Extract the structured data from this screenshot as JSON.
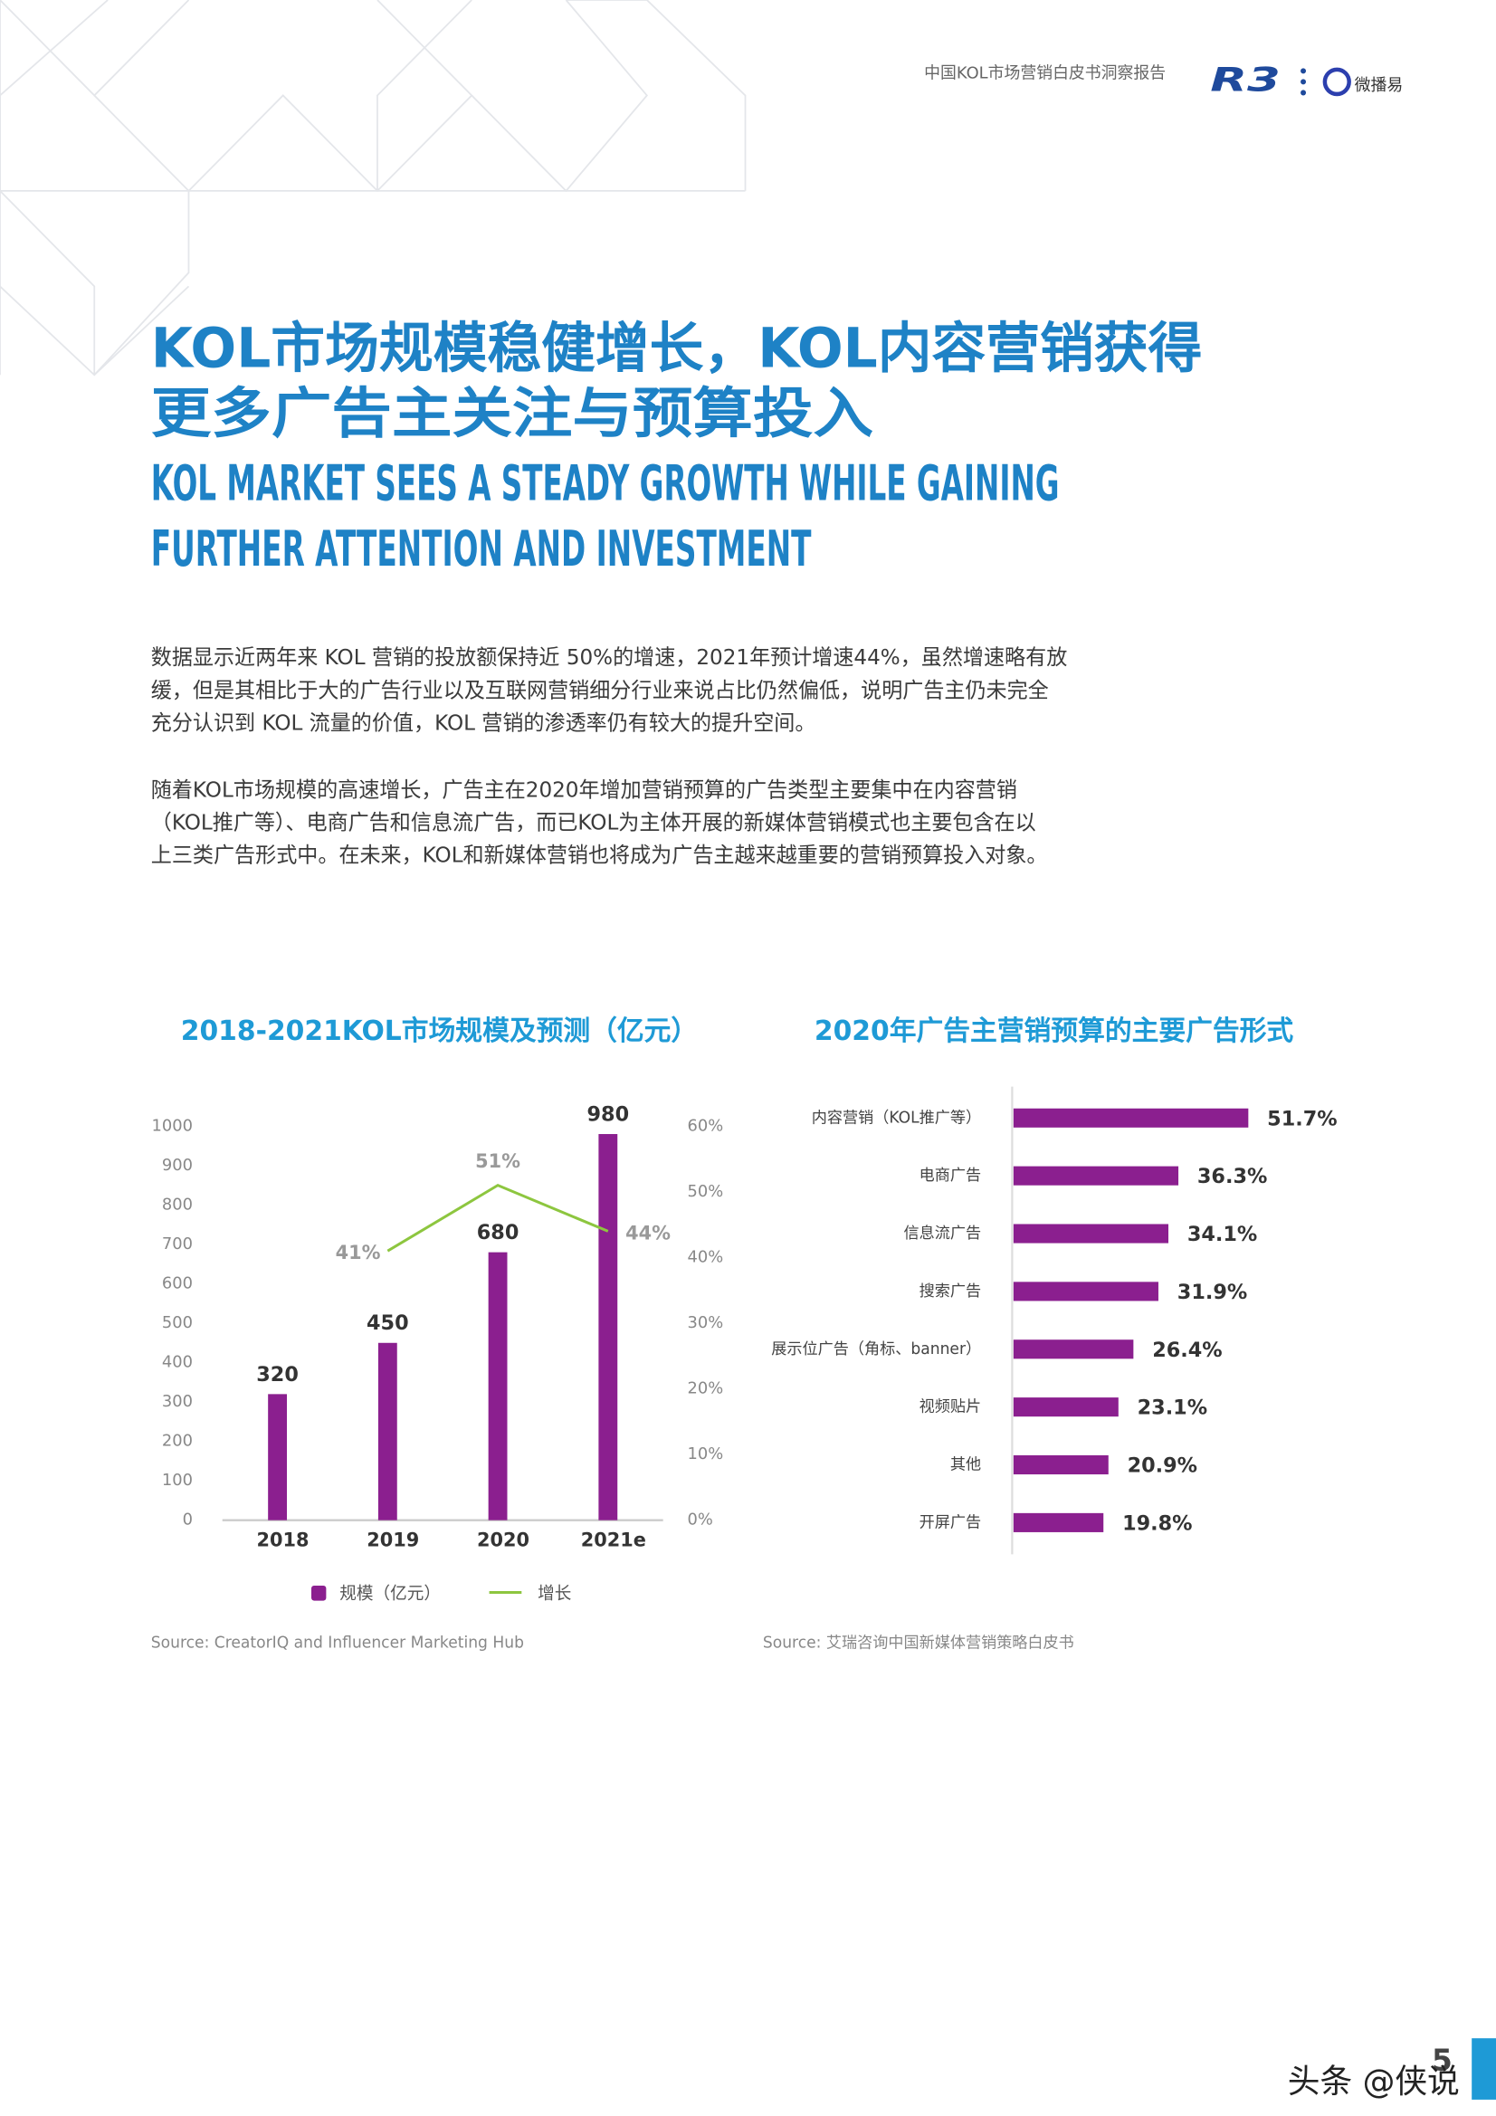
{
  "header": {
    "report_title": "中国KOL市场营销白皮书洞察报告",
    "logo_left": "R3",
    "logo_right": "微播易"
  },
  "title": {
    "zh": [
      "KOL市场规模稳健增长，KOL内容营销获得",
      "更多广告主关注与预算投入"
    ],
    "en": [
      "KOL MARKET SEES A STEADY GROWTH WHILE GAINING",
      "FURTHER ATTENTION AND INVESTMENT"
    ]
  },
  "paragraphs": [
    [
      "数据显示近两年来 KOL 营销的投放额保持近 50%的增速，2021年预计增速44%，虽然增速略有放",
      "缓，但是其相比于大的广告行业以及互联网营销细分行业来说占比仍然偏低，说明广告主仍未完全",
      "充分认识到 KOL 流量的价值，KOL 营销的渗透率仍有较大的提升空间。"
    ],
    [
      "随着KOL市场规模的高速增长，广告主在2020年增加营销预算的广告类型主要集中在内容营销",
      "（KOL推广等）、电商广告和信息流广告，而已KOL为主体开展的新媒体营销模式也主要包含在以",
      "上三类广告形式中。在未来，KOL和新媒体营销也将成为广告主越来越重要的营销预算投入对象。"
    ]
  ],
  "chart_data": [
    {
      "type": "bar_line",
      "title": "2018-2021KOL市场规模及预测（亿元）",
      "categories": [
        "2018",
        "2019",
        "2020",
        "2021e"
      ],
      "series": [
        {
          "name": "规模（亿元）",
          "color": "#8b1f8f",
          "type": "bar",
          "values": [
            320,
            450,
            680,
            980
          ]
        },
        {
          "name": "增长",
          "color": "#8dc63f",
          "type": "line",
          "axis": "y2",
          "values": [
            null,
            41,
            51,
            44
          ],
          "value_labels": [
            null,
            "41%",
            "51%",
            "44%"
          ]
        }
      ],
      "ylim": [
        0,
        1000
      ],
      "yticks": [
        0,
        100,
        200,
        300,
        400,
        500,
        600,
        700,
        800,
        900,
        1000
      ],
      "y2lim": [
        0,
        60
      ],
      "y2ticks": [
        {
          "value": 0,
          "label": "0%"
        },
        {
          "value": 10,
          "label": "10%"
        },
        {
          "value": 20,
          "label": "20%"
        },
        {
          "value": 30,
          "label": "30%"
        },
        {
          "value": 40,
          "label": "40%"
        },
        {
          "value": 50,
          "label": "50%"
        },
        {
          "value": 60,
          "label": "60%"
        }
      ]
    },
    {
      "type": "hbar",
      "title": "2020年广告主营销预算的主要广告形式",
      "categories": [
        "内容营销（KOL推广等）",
        "电商广告",
        "信息流广告",
        "搜索广告",
        "展示位广告（角标、banner）",
        "视频贴片",
        "其他",
        "开屏广告"
      ],
      "values": [
        51.7,
        36.3,
        34.1,
        31.9,
        26.4,
        23.1,
        20.9,
        19.8
      ],
      "value_labels": [
        "51.7%",
        "36.3%",
        "34.1%",
        "31.9%",
        "26.4%",
        "23.1%",
        "20.9%",
        "19.8%"
      ],
      "color": "#8b1f8f"
    }
  ],
  "sources": [
    "Source: CreatorIQ and Influencer Marketing Hub",
    "Source: 艾瑞咨询中国新媒体营销策略白皮书"
  ],
  "page_number": "5",
  "watermark": "头条 @侠说"
}
